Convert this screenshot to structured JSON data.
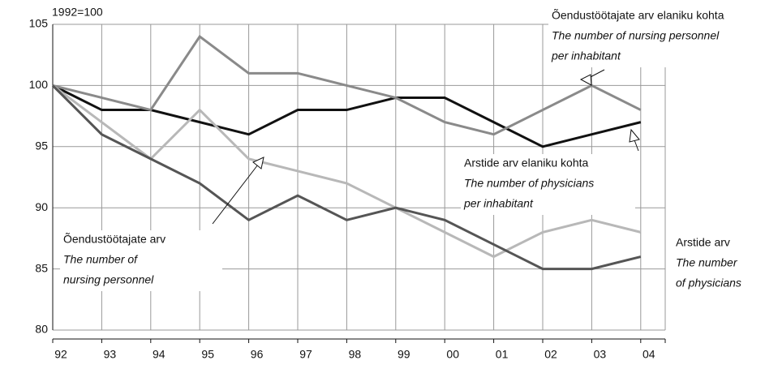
{
  "chart_data": {
    "type": "line",
    "y_label": "1992=100",
    "categories": [
      "92",
      "93",
      "94",
      "95",
      "96",
      "97",
      "98",
      "99",
      "00",
      "01",
      "02",
      "03",
      "04"
    ],
    "series": [
      {
        "name": "Arstide arv elaniku kohta",
        "label_lines": [
          "The number of physicians",
          "per inhabitant"
        ],
        "color": "#111111",
        "values": [
          100,
          98,
          98,
          97,
          96,
          98,
          98,
          99,
          99,
          97,
          95,
          96,
          97
        ]
      },
      {
        "name": "Õendustöötajate arv elaniku kohta",
        "label_lines": [
          "The number of nursing personnel",
          "per inhabitant"
        ],
        "color": "#8a8a8a",
        "values": [
          100,
          99,
          98,
          104,
          101,
          101,
          100,
          99,
          97,
          96,
          98,
          100,
          98
        ]
      },
      {
        "name": "Õendustöötajate arv",
        "label_lines": [
          "The number of",
          "nursing personnel"
        ],
        "color": "#b8b8b8",
        "values": [
          100,
          97,
          94,
          98,
          94,
          93,
          92,
          90,
          88,
          86,
          88,
          89,
          88
        ]
      },
      {
        "name": "Arstide arv",
        "label_lines": [
          "The number",
          "of physicians"
        ],
        "color": "#555555",
        "values": [
          100,
          96,
          94,
          92,
          89,
          91,
          89,
          90,
          89,
          87,
          85,
          85,
          86
        ]
      }
    ],
    "ylim": [
      80,
      105
    ],
    "yticks": [
      80,
      85,
      90,
      95,
      100,
      105
    ],
    "grid": true
  }
}
